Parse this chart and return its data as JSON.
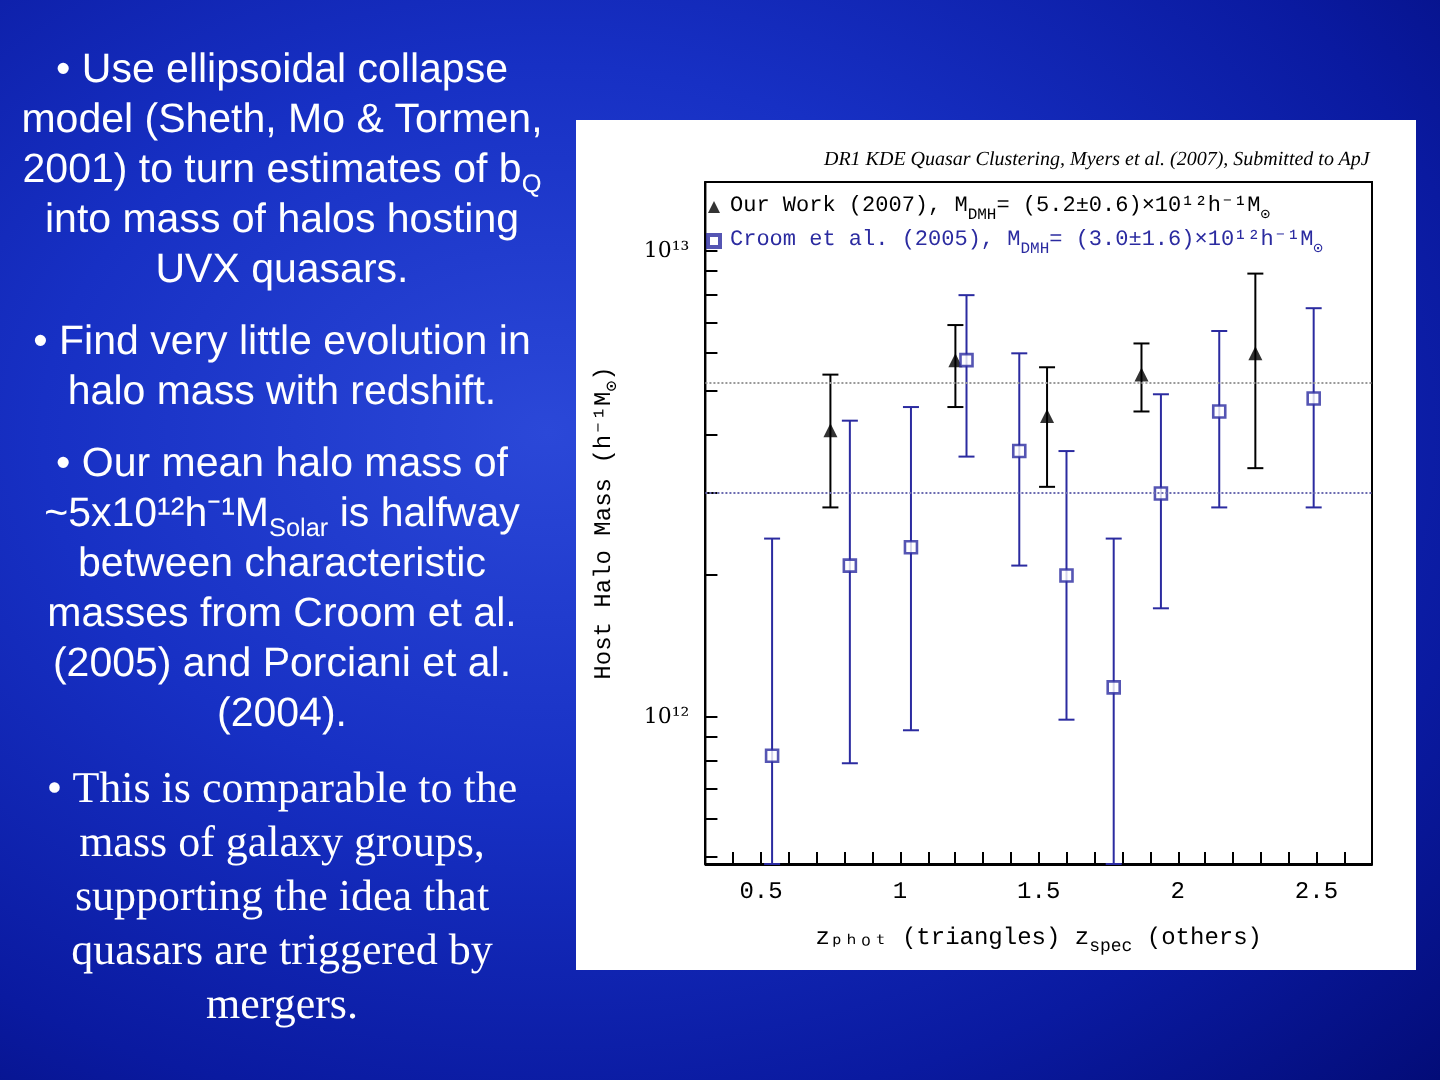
{
  "chart_data": {
    "type": "scatter",
    "title": "DR1 KDE Quasar Clustering, Myers et al. (2007), Submitted to ApJ",
    "xlabel": "zₚₕₒₜ (triangles) z$_{spec}$ (others)",
    "ylabel": "Host Halo Mass (h⁻¹M$_{⊙}$)",
    "annotations": [
      "• Use ellipsoidal collapse model (Sheth, Mo & Tormen, 2001) to turn estimates of b$_{Q}$ into mass of halos hosting UVX quasars.",
      "• Find very little evolution in halo mass with redshift.",
      "• Our mean halo mass of ~5x10¹²h⁻¹M$_{Solar}$ is halfway between characteristic masses from Croom et al. (2005) and Porciani et al. (2004).",
      "• This is comparable to the mass of galaxy groups, supporting the idea  that quasars are triggered by mergers."
    ],
    "log": "y",
    "xlim": [
      0.3,
      2.7
    ],
    "ylim": [
      480000000000,
      14000000000000
    ],
    "xticks": [
      {
        "value": 0.4,
        "label": null
      },
      0.5,
      {
        "value": 0.6,
        "label": null
      },
      {
        "value": 0.7,
        "label": null
      },
      {
        "value": 0.8,
        "label": null
      },
      {
        "value": 0.9,
        "label": null
      },
      1,
      {
        "value": 1.1,
        "label": null
      },
      {
        "value": 1.2,
        "label": null
      },
      {
        "value": 1.3,
        "label": null
      },
      {
        "value": 1.4,
        "label": null
      },
      1.5,
      {
        "value": 1.6,
        "label": null
      },
      {
        "value": 1.7,
        "label": null
      },
      {
        "value": 1.8,
        "label": null
      },
      {
        "value": 1.9,
        "label": null
      },
      2,
      {
        "value": 2.1,
        "label": null
      },
      {
        "value": 2.2,
        "label": null
      },
      {
        "value": 2.3,
        "label": null
      },
      {
        "value": 2.4,
        "label": null
      },
      2.5,
      {
        "value": 2.6,
        "label": null
      }
    ],
    "yticks": [
      {
        "value": 500000000000,
        "label": null
      },
      {
        "value": 600000000000,
        "label": null
      },
      {
        "value": 700000000000,
        "label": null
      },
      {
        "value": 800000000000,
        "label": null
      },
      {
        "value": 900000000000,
        "label": null
      },
      {
        "value": 1000000000000,
        "label": "10¹²"
      },
      {
        "value": 2000000000000,
        "label": null
      },
      {
        "value": 3000000000000,
        "label": null
      },
      {
        "value": 4000000000000,
        "label": null
      },
      {
        "value": 5000000000000,
        "label": null
      },
      {
        "value": 6000000000000,
        "label": null
      },
      {
        "value": 7000000000000,
        "label": null
      },
      {
        "value": 8000000000000,
        "label": null
      },
      {
        "value": 9000000000000,
        "label": null
      },
      {
        "value": 10000000000000,
        "label": "10¹³"
      }
    ],
    "grid": false,
    "legend": "top left",
    "ref_lines": [
      {
        "axis": "y",
        "value": 5200000000000,
        "color": "#999999",
        "line_style": "dotted"
      },
      {
        "axis": "y",
        "value": 3000000000000,
        "color": "#6b6bb0",
        "line_style": "dotted"
      }
    ],
    "series": [
      {
        "name": "Our Work (2007), M$_{DMH}$= (5.2±0.6)×10¹²h⁻¹M$_{⊙}$",
        "color": "#000000",
        "marker": "triangle",
        "x": [
          0.75,
          1.2,
          1.53,
          1.87,
          2.28
        ],
        "values": [
          4100000000000,
          5800000000000,
          4400000000000,
          5400000000000,
          6000000000000
        ],
        "errors": [
          [
            2800000000000,
            5400000000000
          ],
          [
            4600000000000,
            6900000000000
          ],
          [
            3100000000000,
            5600000000000
          ],
          [
            4500000000000,
            6300000000000
          ],
          [
            3400000000000,
            8900000000000
          ]
        ]
      },
      {
        "name": "Croom et al. (2005), M$_{DMH}$= (3.0±1.6)×10¹²h⁻¹M$_{⊙}$",
        "color": "#2b2ba0",
        "marker": "square",
        "x": [
          0.54,
          0.82,
          1.04,
          1.24,
          1.43,
          1.6,
          1.77,
          1.94,
          2.15,
          2.49
        ],
        "values": [
          820000000000,
          2100000000000,
          2300000000000,
          5800000000000,
          3700000000000,
          2000000000000,
          1150000000000,
          3000000000000,
          4500000000000,
          4800000000000
        ],
        "errors": [
          [
            480000000000,
            2400000000000
          ],
          [
            790000000000,
            4300000000000
          ],
          [
            930000000000,
            4600000000000
          ],
          [
            3600000000000,
            8000000000000
          ],
          [
            2100000000000,
            6000000000000
          ],
          [
            980000000000,
            3700000000000
          ],
          [
            480000000000,
            2400000000000
          ],
          [
            1700000000000,
            4900000000000
          ],
          [
            2800000000000,
            6700000000000
          ],
          [
            2800000000000,
            7500000000000
          ]
        ]
      }
    ]
  }
}
